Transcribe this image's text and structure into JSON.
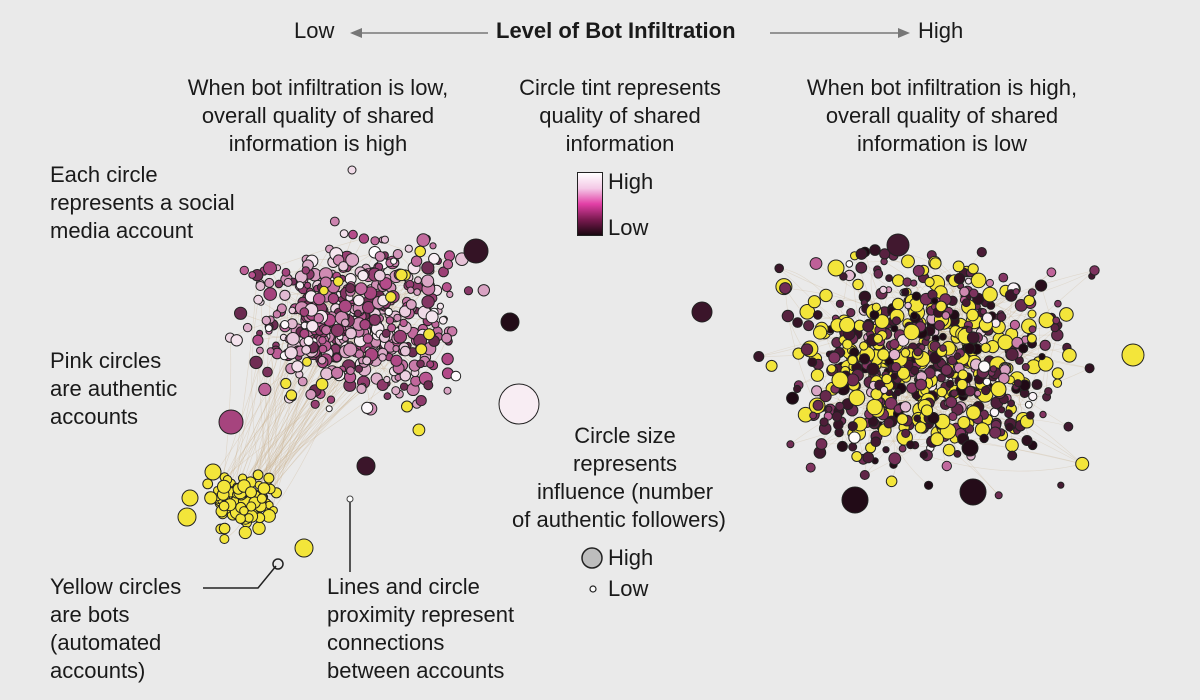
{
  "header": {
    "low_label": "Low",
    "title": "Level of Bot Infiltration",
    "high_label": "High"
  },
  "left_caption": [
    "When bot infiltration is low,",
    "overall quality of shared",
    "information is high"
  ],
  "tint_caption": [
    "Circle tint represents",
    "quality of shared",
    "information"
  ],
  "right_caption": [
    "When bot infiltration is high,",
    "overall quality of shared",
    "information is low"
  ],
  "tint_legend": {
    "high": "High",
    "low": "Low"
  },
  "annotations": {
    "each_circle": [
      "Each circle",
      "represents a social",
      "media account"
    ],
    "pink_circles": [
      "Pink circles",
      "are authentic",
      "accounts"
    ],
    "yellow_circles": [
      "Yellow circles",
      "are bots",
      "(automated",
      "accounts)"
    ],
    "lines": [
      "Lines and circle",
      "proximity represent",
      "connections",
      "between accounts"
    ]
  },
  "size_caption": [
    "Circle size",
    "represents",
    "influence (number",
    "of authentic followers)"
  ],
  "size_legend": {
    "high": "High",
    "low": "Low"
  },
  "colors": {
    "bot": "#f3e53a",
    "authentic_high": "#ffffff",
    "authentic_mid": "#b54b8a",
    "authentic_low": "#1c0812",
    "edge": "#c8b08a",
    "background": "#eaeaea"
  }
}
